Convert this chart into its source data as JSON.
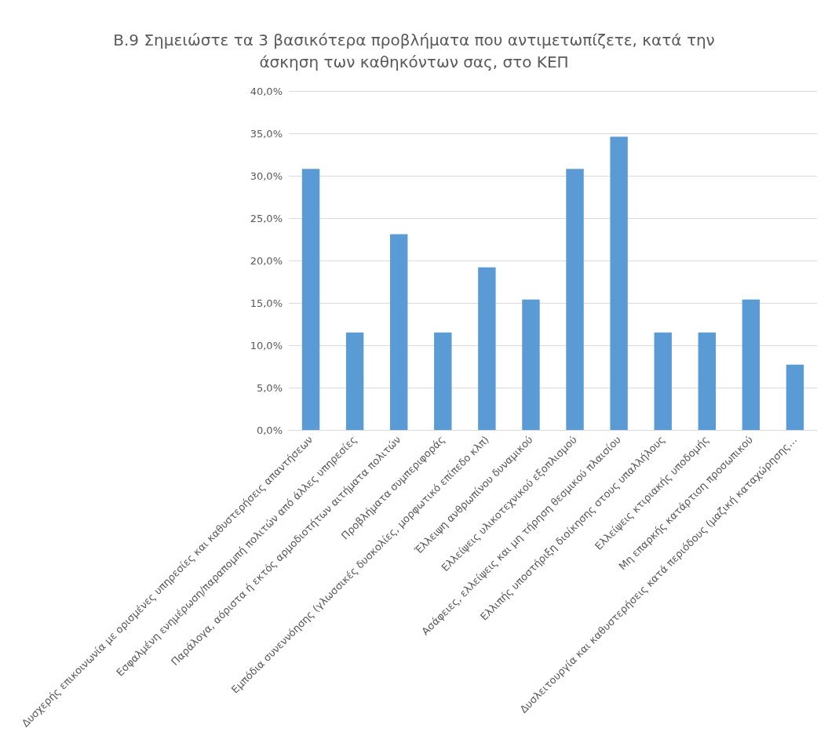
{
  "chart_data": {
    "type": "bar",
    "title": "Β.9 Σημειώστε τα 3 βασικότερα προβλήματα που αντιμετωπίζετε, κατά την\nάσκηση των καθηκόντων σας, στο ΚΕΠ",
    "categories": [
      "Δυσχερής επικοινωνία με ορισμένες υπηρεσίες και καθυστερήσεις απαντήσεων",
      "Εσφαλμένη ενημέρωση/παραπομπή πολιτών από άλλες υπηρεσίες",
      "Παράλογα, αόριστα ή εκτός αρμοδιοτήτων αιτήματα πολιτών",
      "Προβλήματα συμπεριφοράς",
      "Εμπόδια συνεννόησης (γλωσσικές δυσκολίες, μορφωτικό επίπεδο κλπ)",
      "Έλλειψη ανθρωπίνου δυναμικού",
      "Ελλείψεις υλικοτεχνικού εξοπλισμού",
      "Ασάφειες, ελλείψεις και μη τήρηση θεσμικού πλαισίου",
      "Ελλιπής υποστήριξη διοίκησης στους υπαλλήλους",
      "Ελλείψεις κτιριακής υποδομής",
      "Μη επαρκής κατάρτιση προσωπικού",
      "Δυσλειτουργία και καθυστερήσεις κατά περιόδους (μαζική καταχώρησης…"
    ],
    "values": [
      30.8,
      11.5,
      23.1,
      11.5,
      19.2,
      15.4,
      30.8,
      34.6,
      11.5,
      11.5,
      15.4,
      7.7
    ],
    "color": "#5b9bd5",
    "ylim": [
      0,
      40
    ],
    "yticks": [
      {
        "value": 0,
        "label": "0,0%"
      },
      {
        "value": 5,
        "label": "5,0%"
      },
      {
        "value": 10,
        "label": "10,0%"
      },
      {
        "value": 15,
        "label": "15,0%"
      },
      {
        "value": 20,
        "label": "20,0%"
      },
      {
        "value": 25,
        "label": "25,0%"
      },
      {
        "value": 30,
        "label": "30,0%"
      },
      {
        "value": 35,
        "label": "35,0%"
      },
      {
        "value": 40,
        "label": "40,0%"
      }
    ],
    "grid": "y"
  }
}
